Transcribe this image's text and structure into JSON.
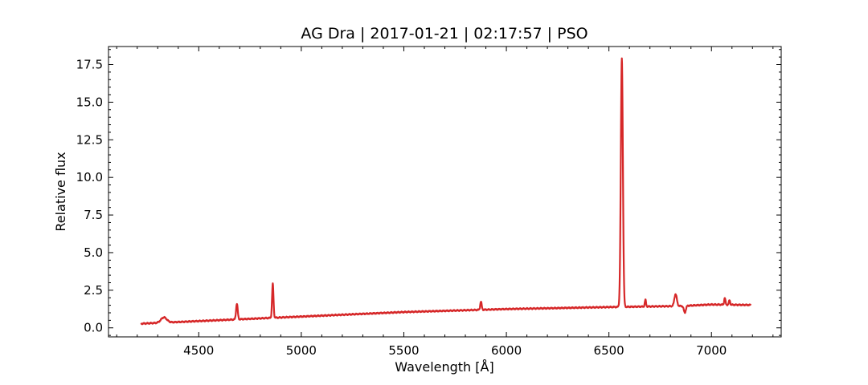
{
  "chart_data": {
    "type": "line",
    "title": "AG Dra | 2017-01-21 | 02:17:57 | PSO",
    "xlabel": "Wavelength [Å]",
    "ylabel": "Relative flux",
    "xlim": [
      4060,
      7340
    ],
    "ylim": [
      -0.6,
      18.7
    ],
    "xticks": [
      4500,
      5000,
      5500,
      6000,
      6500,
      7000
    ],
    "yticks": [
      0.0,
      2.5,
      5.0,
      7.5,
      10.0,
      12.5,
      15.0,
      17.5
    ],
    "xtick_labels": [
      "4500",
      "5000",
      "5500",
      "6000",
      "6500",
      "7000"
    ],
    "ytick_labels": [
      "0.0",
      "2.5",
      "5.0",
      "7.5",
      "10.0",
      "12.5",
      "15.0",
      "17.5"
    ],
    "grid": false,
    "legend": "none",
    "series": [
      {
        "color": "#d62728",
        "continuum": [
          [
            4220,
            0.28
          ],
          [
            4500,
            0.45
          ],
          [
            5000,
            0.75
          ],
          [
            5500,
            1.05
          ],
          [
            6000,
            1.25
          ],
          [
            6500,
            1.38
          ],
          [
            6850,
            1.45
          ],
          [
            7000,
            1.55
          ],
          [
            7190,
            1.52
          ]
        ],
        "features": [
          {
            "center": 4330,
            "amplitude": 0.35,
            "width": 14
          },
          {
            "center": 4686,
            "amplitude": 1.05,
            "width": 4
          },
          {
            "center": 4861,
            "amplitude": 2.25,
            "width": 3.5
          },
          {
            "center": 5876,
            "amplitude": 0.55,
            "width": 3.5
          },
          {
            "center": 6563,
            "amplitude": 16.5,
            "width": 5
          },
          {
            "center": 6678,
            "amplitude": 0.45,
            "width": 3
          },
          {
            "center": 6825,
            "amplitude": 0.8,
            "width": 6
          },
          {
            "center": 6870,
            "amplitude": -0.45,
            "width": 5
          },
          {
            "center": 7065,
            "amplitude": 0.45,
            "width": 3
          },
          {
            "center": 7088,
            "amplitude": 0.3,
            "width": 3
          }
        ]
      }
    ]
  }
}
